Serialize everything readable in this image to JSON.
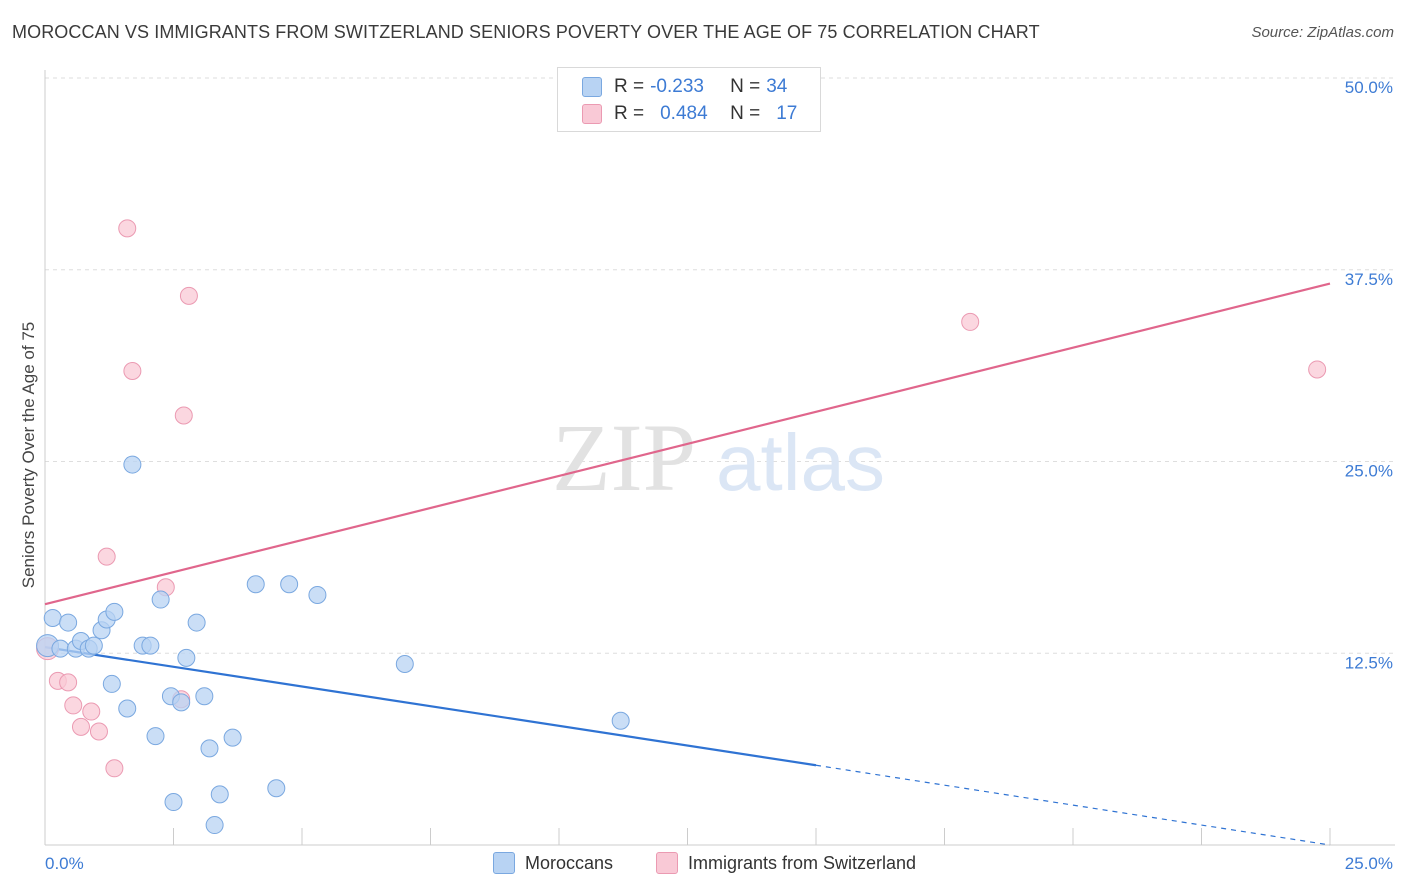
{
  "title": "MOROCCAN VS IMMIGRANTS FROM SWITZERLAND SENIORS POVERTY OVER THE AGE OF 75 CORRELATION CHART",
  "source": "Source: ZipAtlas.com",
  "watermark": {
    "zip": "ZIP",
    "atlas": "atlas"
  },
  "legend_top": {
    "rows": [
      {
        "r_label": "R = ",
        "r_value": "-0.233",
        "n_label": "N = ",
        "n_value": "34"
      },
      {
        "r_label": "R = ",
        "r_value": "0.484",
        "n_label": "N = ",
        "n_value": "17"
      }
    ]
  },
  "legend_bottom": {
    "items": [
      "Moroccans",
      "Immigrants from Switzerland"
    ]
  },
  "colors": {
    "blue_fill": "#b8d3f3",
    "blue_stroke": "#7aa8e0",
    "blue_line": "#2f73d3",
    "pink_fill": "#f9c9d6",
    "pink_stroke": "#eb9ab2",
    "pink_line": "#e0668c",
    "grid": "#dedede",
    "tick_text": "#3d7bd4"
  },
  "chart_data": {
    "type": "scatter",
    "title": "MOROCCAN VS IMMIGRANTS FROM SWITZERLAND SENIORS POVERTY OVER THE AGE OF 75 CORRELATION CHART",
    "xlabel": "",
    "ylabel": "Seniors Poverty Over the Age of 75",
    "xlim": [
      0,
      25
    ],
    "ylim": [
      0,
      50
    ],
    "x_tick_labels": [
      "0.0%",
      "25.0%"
    ],
    "y_ticks": [
      12.5,
      25.0,
      37.5,
      50.0
    ],
    "y_tick_labels": [
      "12.5%",
      "25.0%",
      "37.5%",
      "50.0%"
    ],
    "series": [
      {
        "name": "Moroccans",
        "r": -0.233,
        "n": 34,
        "points": [
          [
            0.05,
            13.0
          ],
          [
            0.15,
            14.8
          ],
          [
            0.3,
            12.8
          ],
          [
            0.45,
            14.5
          ],
          [
            0.6,
            12.8
          ],
          [
            0.7,
            13.3
          ],
          [
            0.85,
            12.8
          ],
          [
            0.95,
            13.0
          ],
          [
            1.1,
            14.0
          ],
          [
            1.2,
            14.7
          ],
          [
            1.35,
            15.2
          ],
          [
            1.3,
            10.5
          ],
          [
            1.6,
            8.9
          ],
          [
            1.7,
            24.8
          ],
          [
            1.9,
            13.0
          ],
          [
            2.05,
            13.0
          ],
          [
            2.15,
            7.1
          ],
          [
            2.25,
            16.0
          ],
          [
            2.45,
            9.7
          ],
          [
            2.5,
            2.8
          ],
          [
            2.65,
            9.3
          ],
          [
            2.75,
            12.2
          ],
          [
            2.95,
            14.5
          ],
          [
            3.1,
            9.7
          ],
          [
            3.2,
            6.3
          ],
          [
            3.3,
            1.3
          ],
          [
            3.4,
            3.3
          ],
          [
            3.65,
            7.0
          ],
          [
            4.1,
            17.0
          ],
          [
            4.5,
            3.7
          ],
          [
            4.75,
            17.0
          ],
          [
            5.3,
            16.3
          ],
          [
            7.0,
            11.8
          ],
          [
            11.2,
            8.1
          ]
        ]
      },
      {
        "name": "Immigrants from Switzerland",
        "r": 0.484,
        "n": 17,
        "points": [
          [
            0.05,
            12.8
          ],
          [
            0.25,
            10.7
          ],
          [
            0.45,
            10.6
          ],
          [
            0.55,
            9.1
          ],
          [
            0.7,
            7.7
          ],
          [
            0.9,
            8.7
          ],
          [
            1.05,
            7.4
          ],
          [
            1.2,
            18.8
          ],
          [
            1.35,
            5.0
          ],
          [
            1.6,
            40.2
          ],
          [
            1.7,
            30.9
          ],
          [
            2.35,
            16.8
          ],
          [
            2.65,
            9.5
          ],
          [
            2.7,
            28.0
          ],
          [
            2.8,
            35.8
          ],
          [
            18.0,
            34.1
          ],
          [
            24.75,
            31.0
          ]
        ]
      }
    ],
    "trendlines": [
      {
        "series": "Moroccans",
        "solid_from": [
          0,
          12.9
        ],
        "solid_to": [
          15.0,
          5.2
        ],
        "dashed_to": [
          25.0,
          0.0
        ]
      },
      {
        "series": "Immigrants from Switzerland",
        "from": [
          0,
          15.7
        ],
        "to": [
          25.0,
          36.6
        ]
      }
    ]
  }
}
